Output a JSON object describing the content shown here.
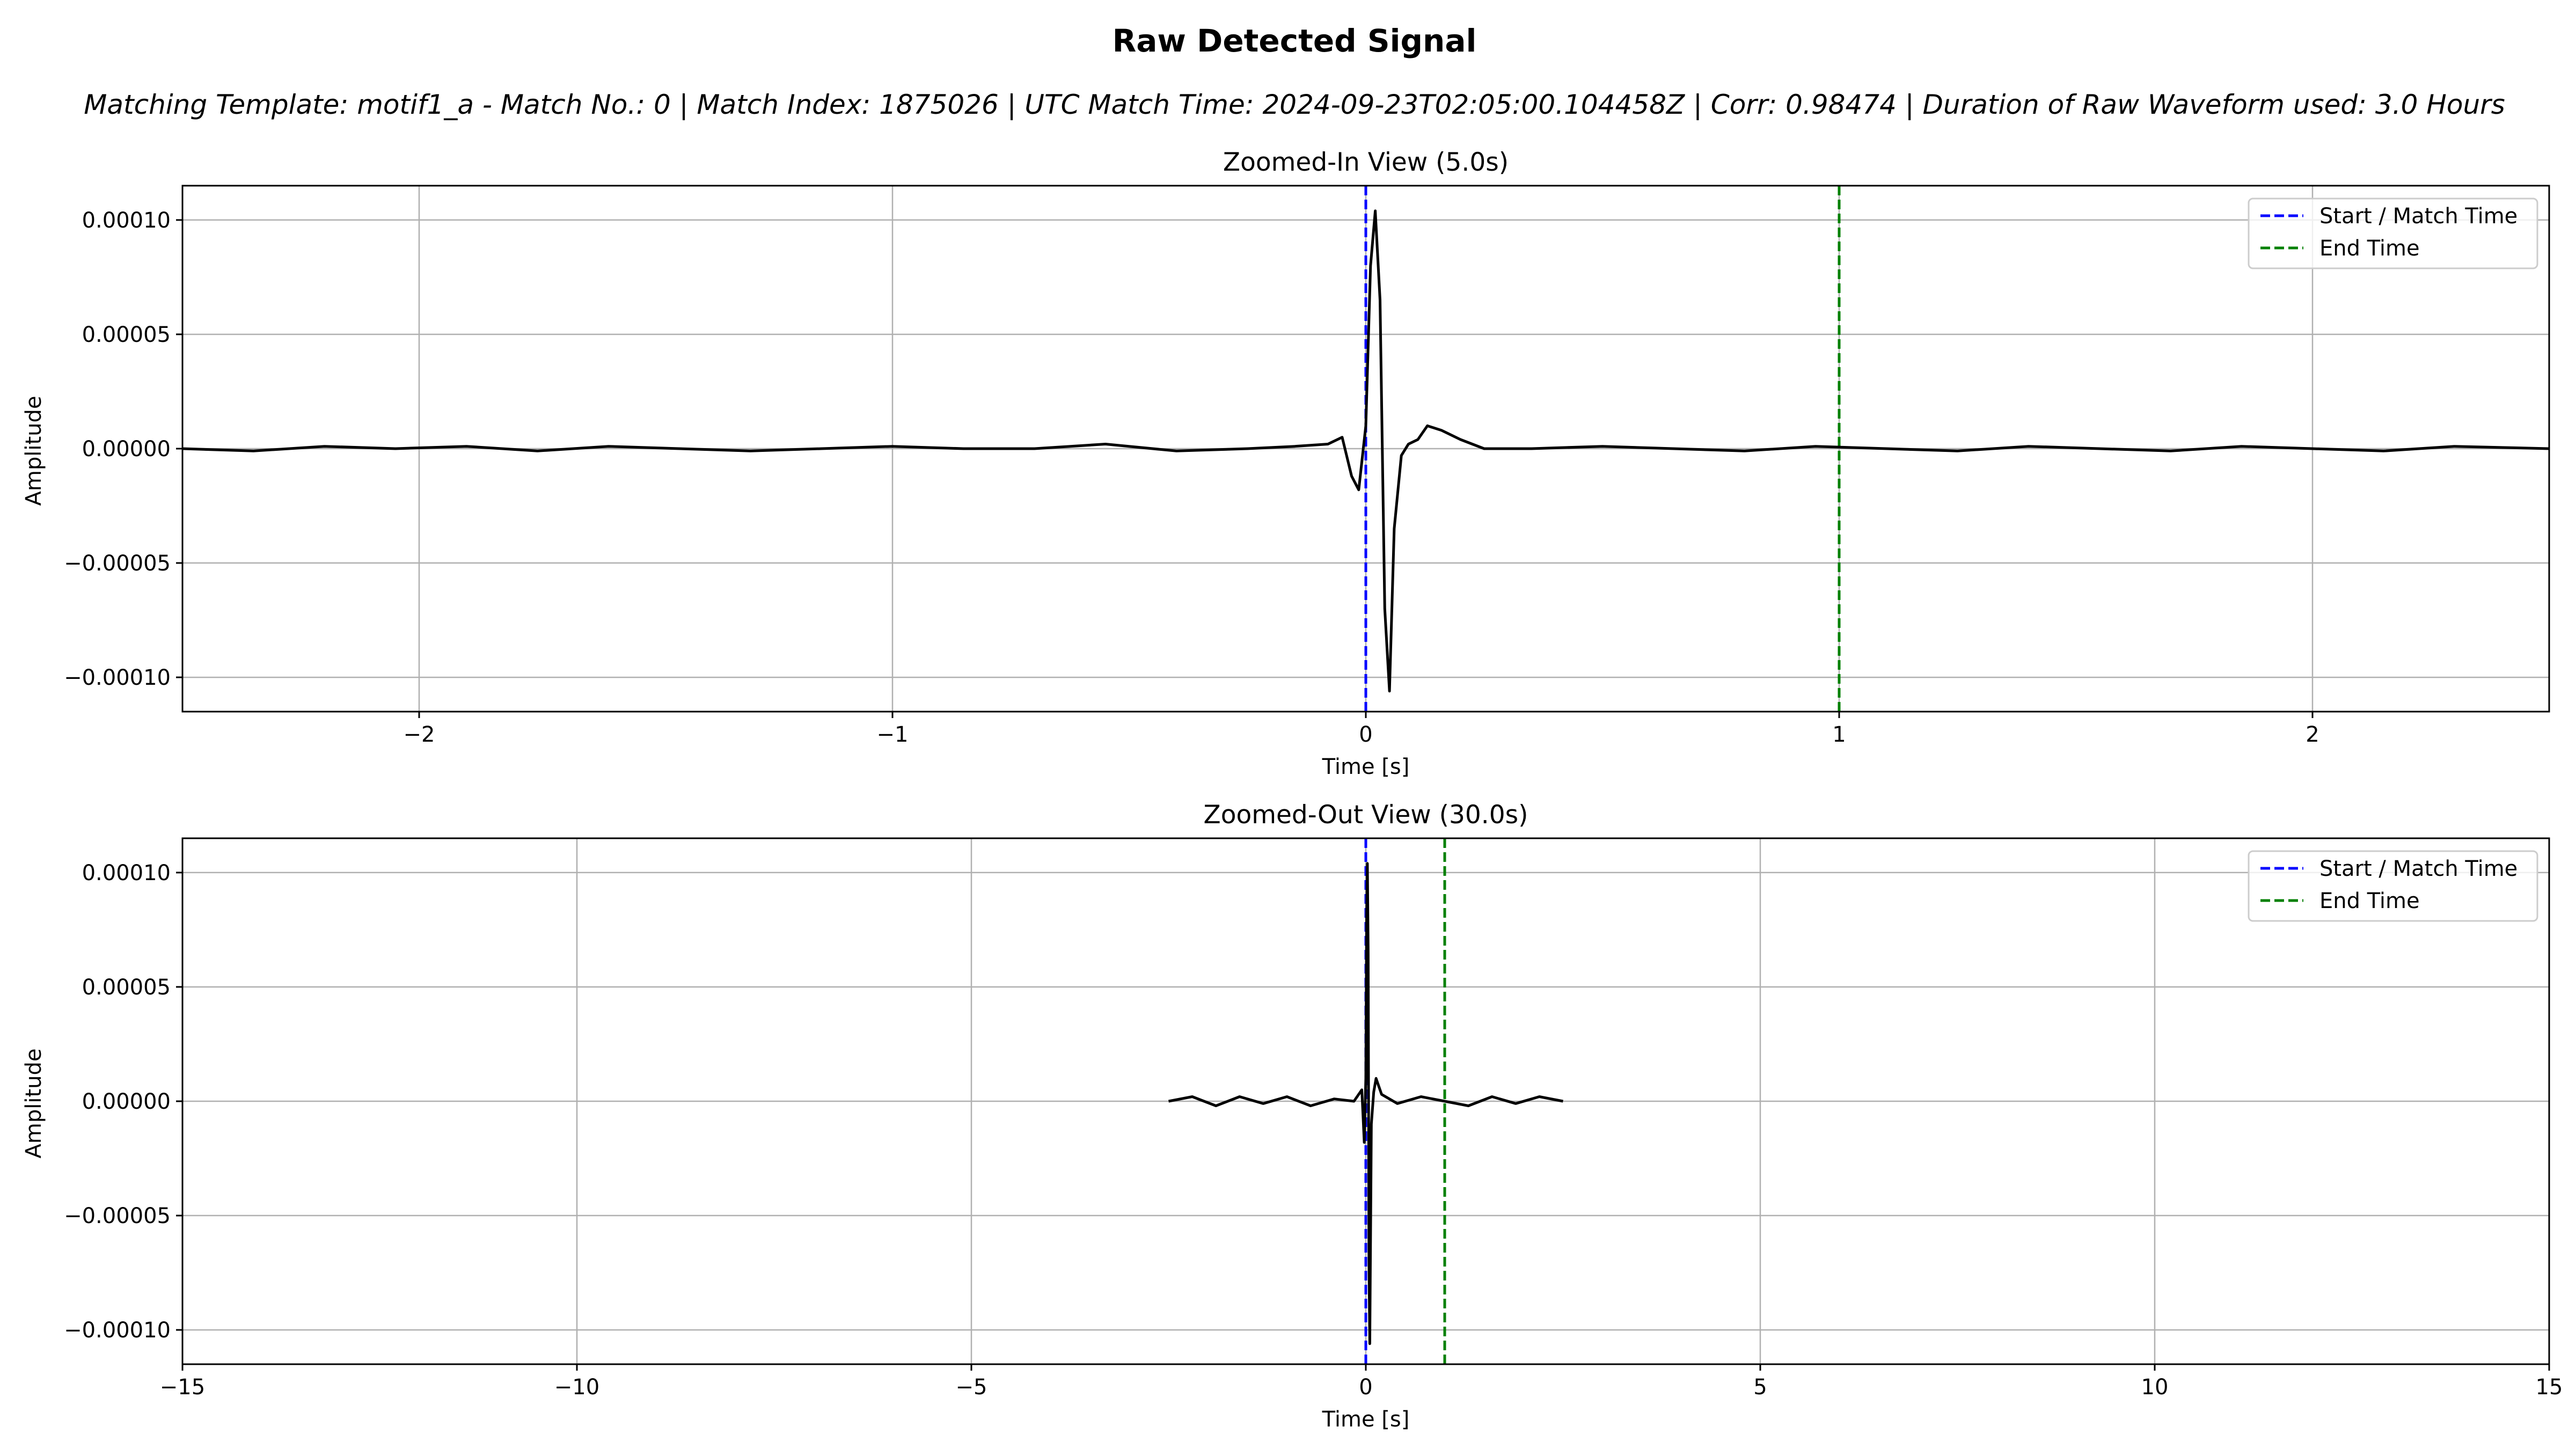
{
  "figure": {
    "title": "Raw Detected Signal",
    "subtitle": "Matching Template: motif1_a - Match No.: 0 | Match Index: 1875026 | UTC Match Time: 2024-09-23T02:05:00.104458Z | Corr: 0.98474 | Duration of Raw Waveform used: 3.0 Hours"
  },
  "chart_data": [
    {
      "type": "line",
      "title": "Zoomed-In View (5.0s)",
      "xlabel": "Time [s]",
      "ylabel": "Amplitude",
      "xlim": [
        -2.5,
        2.5
      ],
      "ylim": [
        -0.000115,
        0.000115
      ],
      "xticks": [
        -2,
        -1,
        0,
        1,
        2
      ],
      "xtick_labels": [
        "−2",
        "−1",
        "0",
        "1",
        "2"
      ],
      "yticks": [
        0.0001,
        5e-05,
        0,
        -5e-05,
        -0.0001
      ],
      "ytick_labels": [
        "0.00010",
        "0.00005",
        "0.00000",
        "−0.00005",
        "−0.00010"
      ],
      "grid": true,
      "legend_position": "top-right",
      "series": [
        {
          "color": "#000000",
          "x": [
            -2.5,
            -2.35,
            -2.2,
            -2.05,
            -1.9,
            -1.75,
            -1.6,
            -1.45,
            -1.3,
            -1.15,
            -1.0,
            -0.85,
            -0.7,
            -0.55,
            -0.4,
            -0.25,
            -0.15,
            -0.08,
            -0.05,
            -0.03,
            -0.015,
            0.0,
            0.01,
            0.02,
            0.03,
            0.04,
            0.05,
            0.06,
            0.075,
            0.09,
            0.11,
            0.13,
            0.16,
            0.2,
            0.25,
            0.35,
            0.5,
            0.65,
            0.8,
            0.95,
            1.1,
            1.25,
            1.4,
            1.55,
            1.7,
            1.85,
            2.0,
            2.15,
            2.3,
            2.5
          ],
          "y": [
            0.0,
            -1e-06,
            1e-06,
            0.0,
            1e-06,
            -1e-06,
            1e-06,
            0.0,
            -1e-06,
            0.0,
            1e-06,
            0.0,
            0.0,
            2e-06,
            -1e-06,
            0.0,
            1e-06,
            2e-06,
            5e-06,
            -1.2e-05,
            -1.8e-05,
            1e-05,
            8e-05,
            0.000104,
            6.5e-05,
            -7e-05,
            -0.000106,
            -3.5e-05,
            -3e-06,
            2e-06,
            4e-06,
            1e-05,
            8e-06,
            4e-06,
            0.0,
            0.0,
            1e-06,
            0.0,
            -1e-06,
            1e-06,
            0.0,
            -1e-06,
            1e-06,
            0.0,
            -1e-06,
            1e-06,
            0.0,
            -1e-06,
            1e-06,
            0.0
          ]
        }
      ],
      "vlines": [
        {
          "x": 0,
          "color": "#0000ff",
          "label": "Start / Match Time"
        },
        {
          "x": 1,
          "color": "#008000",
          "label": "End Time"
        }
      ]
    },
    {
      "type": "line",
      "title": "Zoomed-Out View (30.0s)",
      "xlabel": "Time [s]",
      "ylabel": "Amplitude",
      "xlim": [
        -15,
        15
      ],
      "ylim": [
        -0.000115,
        0.000115
      ],
      "xticks": [
        -15,
        -10,
        -5,
        0,
        5,
        10,
        15
      ],
      "xtick_labels": [
        "−15",
        "−10",
        "−5",
        "0",
        "5",
        "10",
        "15"
      ],
      "yticks": [
        0.0001,
        5e-05,
        0,
        -5e-05,
        -0.0001
      ],
      "ytick_labels": [
        "0.00010",
        "0.00005",
        "0.00000",
        "−0.00005",
        "−0.00010"
      ],
      "grid": true,
      "legend_position": "top-right",
      "series": [
        {
          "color": "#000000",
          "x": [
            -2.5,
            -2.2,
            -1.9,
            -1.6,
            -1.3,
            -1.0,
            -0.7,
            -0.4,
            -0.15,
            -0.05,
            -0.02,
            0.0,
            0.01,
            0.02,
            0.03,
            0.04,
            0.05,
            0.07,
            0.1,
            0.13,
            0.2,
            0.4,
            0.7,
            1.0,
            1.3,
            1.6,
            1.9,
            2.2,
            2.5
          ],
          "y": [
            0.0,
            2e-06,
            -2e-06,
            2e-06,
            -1e-06,
            2e-06,
            -2e-06,
            1e-06,
            0.0,
            5e-06,
            -1.8e-05,
            1e-05,
            8e-05,
            0.000104,
            6.5e-05,
            -7e-05,
            -0.000106,
            -1e-05,
            4e-06,
            1e-05,
            3e-06,
            -1e-06,
            2e-06,
            0.0,
            -2e-06,
            2e-06,
            -1e-06,
            2e-06,
            0.0
          ]
        }
      ],
      "vlines": [
        {
          "x": 0,
          "color": "#0000ff",
          "label": "Start / Match Time"
        },
        {
          "x": 1,
          "color": "#008000",
          "label": "End Time"
        }
      ]
    }
  ]
}
